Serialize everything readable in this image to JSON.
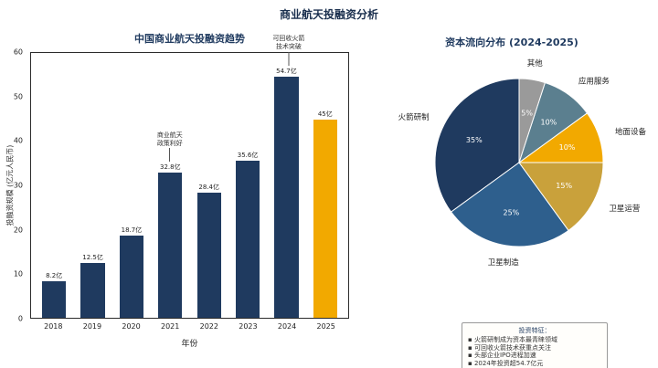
{
  "page_title": "商业航天投融资分析",
  "chart_data": [
    {
      "type": "bar",
      "title": "中国商业航天投融资趋势",
      "xlabel": "年份",
      "ylabel": "投融资规模 (亿元人民币)",
      "ylim": [
        0,
        60
      ],
      "yticks": [
        0,
        10,
        20,
        30,
        40,
        50,
        60
      ],
      "categories": [
        "2018",
        "2019",
        "2020",
        "2021",
        "2022",
        "2023",
        "2024",
        "2025"
      ],
      "values": [
        8.2,
        12.5,
        18.7,
        32.8,
        28.4,
        35.6,
        54.7,
        45
      ],
      "value_labels": [
        "8.2亿",
        "12.5亿",
        "18.7亿",
        "32.8亿",
        "28.4亿",
        "35.6亿",
        "54.7亿",
        "45亿"
      ],
      "bar_color": "#1f3a5f",
      "highlight_index": 7,
      "highlight_color": "#f2a900",
      "grid": false,
      "annotations": [
        {
          "lines": [
            "商业航天",
            "政策利好"
          ],
          "target_index": 3
        },
        {
          "lines": [
            "可回收火箭",
            "技术突破"
          ],
          "target_index": 6
        }
      ]
    },
    {
      "type": "pie",
      "title": "资本流向分布 (2024-2025)",
      "start_angle": 90,
      "direction": "counterclockwise",
      "slices": [
        {
          "label": "火箭研制",
          "value": 35,
          "pct": "35%",
          "color": "#1f3a5f"
        },
        {
          "label": "卫星制造",
          "value": 25,
          "pct": "25%",
          "color": "#2e5f8d"
        },
        {
          "label": "卫星运营",
          "value": 15,
          "pct": "15%",
          "color": "#c9a13b"
        },
        {
          "label": "地面设备",
          "value": 10,
          "pct": "10%",
          "color": "#f2a900"
        },
        {
          "label": "应用服务",
          "value": 10,
          "pct": "10%",
          "color": "#5b7f8f"
        },
        {
          "label": "其他",
          "value": 5,
          "pct": "5%",
          "color": "#9a9a9a"
        }
      ]
    }
  ],
  "info_box": {
    "title": "投资特征：",
    "items": [
      "▪ 火箭研制成为资本最青睐领域",
      "▪ 可回收火箭技术获重点关注",
      "▪ 头部企业IPO进程加速",
      "▪ 2024年投资超54.7亿元"
    ]
  }
}
